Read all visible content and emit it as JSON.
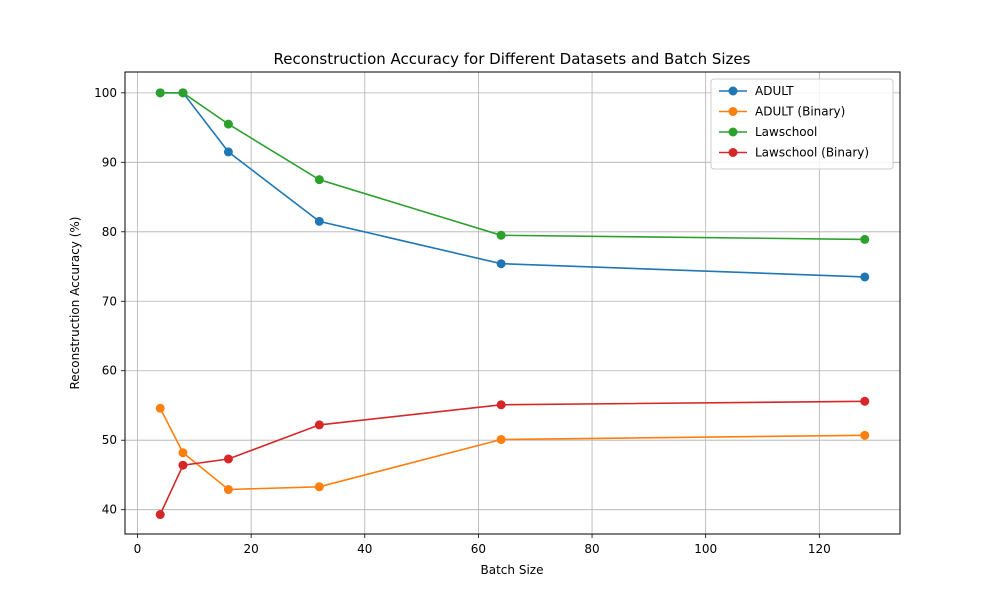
{
  "chart_data": {
    "type": "line",
    "title": "Reconstruction Accuracy for Different Datasets and Batch Sizes",
    "xlabel": "Batch Size",
    "ylabel": "Reconstruction Accuracy (%)",
    "xlim": [
      -2.2,
      134.2
    ],
    "ylim": [
      36.5,
      103.0
    ],
    "xticks": [
      0,
      20,
      40,
      60,
      80,
      100,
      120
    ],
    "yticks": [
      40,
      50,
      60,
      70,
      80,
      90,
      100
    ],
    "grid": true,
    "legend_position": "top-right",
    "x": [
      4,
      8,
      16,
      32,
      64,
      128
    ],
    "series": [
      {
        "name": "ADULT",
        "color": "#1f77b4",
        "values": [
          100.0,
          100.0,
          91.5,
          81.5,
          75.4,
          73.5
        ]
      },
      {
        "name": "ADULT (Binary)",
        "color": "#ff7f0e",
        "values": [
          54.6,
          48.2,
          42.9,
          43.3,
          50.1,
          50.7
        ]
      },
      {
        "name": "Lawschool",
        "color": "#2ca02c",
        "values": [
          100.0,
          100.0,
          95.5,
          87.5,
          79.5,
          78.9
        ]
      },
      {
        "name": "Lawschool (Binary)",
        "color": "#d62728",
        "values": [
          39.3,
          46.4,
          47.3,
          52.2,
          55.1,
          55.6
        ]
      }
    ]
  }
}
